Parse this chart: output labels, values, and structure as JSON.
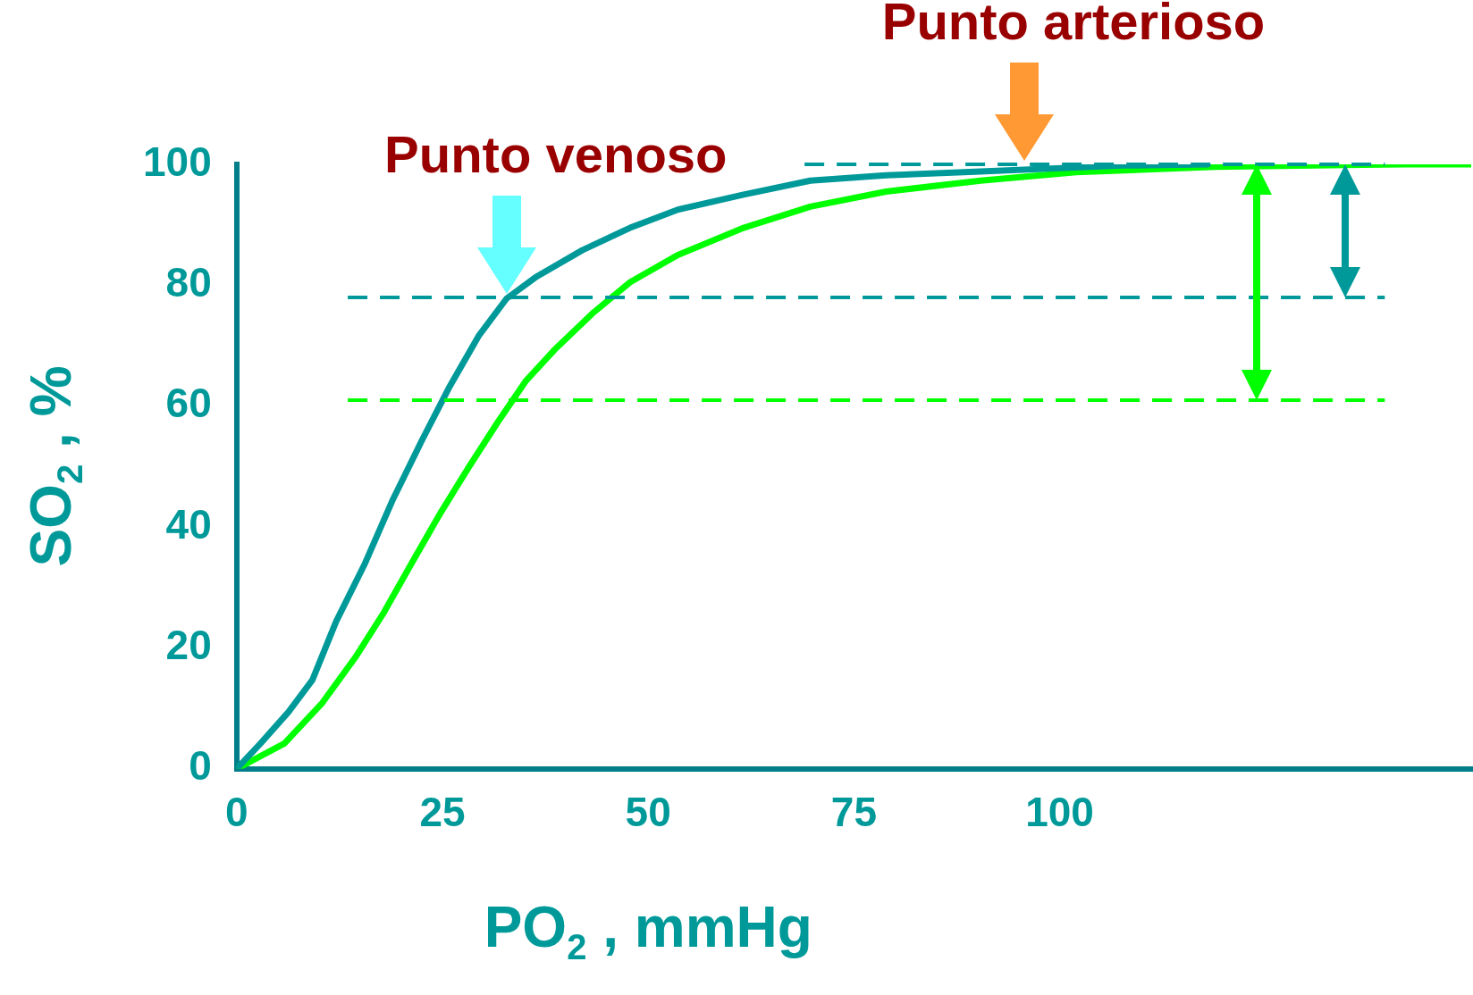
{
  "chart_data": {
    "type": "line",
    "xlabel": "PO$_{2}$ , mmHg",
    "ylabel": "SO$_{2}$ , %",
    "xlim": [
      0,
      150
    ],
    "xticks": [
      0,
      25,
      50,
      75,
      100
    ],
    "ylim": [
      0,
      100
    ],
    "yticks": [
      0,
      20,
      40,
      60,
      80,
      100
    ],
    "grid": false,
    "legend": false,
    "marker": "none",
    "line_style": "solid",
    "series": [
      {
        "color": "#009999",
        "x": [
          0,
          2.9,
          6.3,
          9.2,
          12.1,
          15.6,
          19,
          22.5,
          25.9,
          29.4,
          32.8,
          36.3,
          42,
          47.8,
          53.6,
          61.6,
          69.7,
          78.9,
          90.4,
          107.7,
          118
        ],
        "values": [
          0,
          4.2,
          9.4,
          14.7,
          24.4,
          34,
          44.6,
          54.3,
          63.3,
          71.6,
          77.8,
          81.3,
          85.8,
          89.5,
          92.5,
          95,
          97.3,
          98.2,
          98.8,
          99.8,
          100
        ]
      },
      {
        "color": "#00ff00",
        "x": [
          0,
          5.8,
          10.4,
          14.4,
          17.9,
          21.3,
          24.8,
          28.2,
          31.7,
          35.1,
          38.6,
          43.2,
          47.8,
          53.6,
          61.6,
          69.7,
          78.9,
          90.4,
          102,
          119,
          142,
          150
        ],
        "values": [
          0,
          4.2,
          10.9,
          18.4,
          25.9,
          34.1,
          42.4,
          49.9,
          57.3,
          64.1,
          69.3,
          75.3,
          80.5,
          85,
          89.5,
          93,
          95.5,
          97.3,
          98.7,
          99.6,
          100,
          100
        ]
      }
    ],
    "ref_lines": [
      {
        "axis": "y",
        "value": 100,
        "color": "#009999",
        "line_style": "dashed"
      },
      {
        "axis": "y",
        "value": 78,
        "color": "#009999",
        "line_style": "dashed"
      },
      {
        "axis": "y",
        "value": 61,
        "color": "#00ff00",
        "line_style": "dashed"
      }
    ],
    "annotations": [
      {
        "text": "Punto venoso",
        "x": 32.8,
        "y": 78
      },
      {
        "text": "Punto arterioso",
        "x": 95.7,
        "y": 100
      }
    ]
  }
}
